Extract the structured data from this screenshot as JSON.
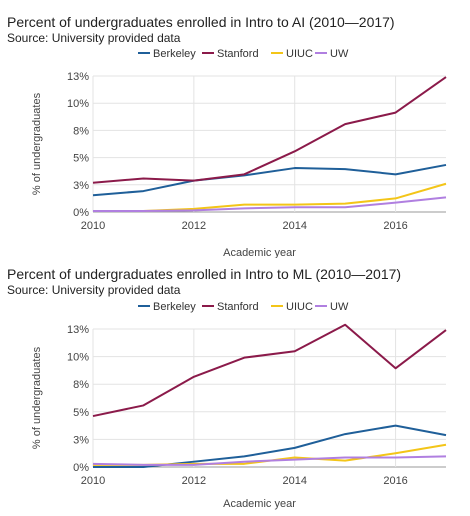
{
  "chart_data": [
    {
      "type": "line",
      "title": "Percent of undergraduates enrolled in Intro to AI (2010—2017)",
      "subtitle": "Source: University provided data",
      "xlabel": "Academic year",
      "ylabel": "% of undergraduates",
      "x": [
        2010,
        2011,
        2012,
        2013,
        2014,
        2015,
        2016,
        2017
      ],
      "x_ticks": [
        "2010",
        "2012",
        "2014",
        "2016"
      ],
      "y_ticks": [
        "0%",
        "3%",
        "5%",
        "8%",
        "10%",
        "13%"
      ],
      "ylim": [
        0,
        13
      ],
      "legend_position": "top-center",
      "grid": true,
      "series": [
        {
          "name": "Berkeley",
          "color": "#1f5f99",
          "values": [
            1.6,
            2.0,
            3.0,
            3.5,
            4.2,
            4.1,
            3.6,
            4.5
          ]
        },
        {
          "name": "Stanford",
          "color": "#8b1a4a",
          "values": [
            2.8,
            3.2,
            3.0,
            3.6,
            5.8,
            8.4,
            9.5,
            12.9
          ]
        },
        {
          "name": "UIUC",
          "color": "#f3c518",
          "values": [
            0.1,
            0.1,
            0.3,
            0.7,
            0.7,
            0.8,
            1.3,
            2.7
          ]
        },
        {
          "name": "UW",
          "color": "#b07fe0",
          "values": [
            0.1,
            0.1,
            0.15,
            0.35,
            0.45,
            0.45,
            0.9,
            1.4
          ]
        }
      ]
    },
    {
      "type": "line",
      "title": "Percent of undergraduates enrolled in Intro to ML (2010—2017)",
      "subtitle": "Source: University provided data",
      "xlabel": "Academic year",
      "ylabel": "% of undergraduates",
      "x": [
        2010,
        2011,
        2012,
        2013,
        2014,
        2015,
        2016,
        2017
      ],
      "x_ticks": [
        "2010",
        "2012",
        "2014",
        "2016"
      ],
      "y_ticks": [
        "0%",
        "3%",
        "5%",
        "8%",
        "10%",
        "13%"
      ],
      "ylim": [
        0,
        13
      ],
      "legend_position": "top-center",
      "grid": true,
      "series": [
        {
          "name": "Berkeley",
          "color": "#1f5f99",
          "values": [
            0,
            0,
            0.5,
            1.0,
            1.8,
            3.1,
            3.9,
            3.0
          ]
        },
        {
          "name": "Stanford",
          "color": "#8b1a4a",
          "values": [
            4.8,
            5.8,
            8.5,
            10.3,
            10.9,
            13.4,
            9.3,
            12.9
          ]
        },
        {
          "name": "UIUC",
          "color": "#f3c518",
          "values": [
            0.2,
            0.2,
            0.3,
            0.3,
            0.9,
            0.6,
            1.3,
            2.1
          ]
        },
        {
          "name": "UW",
          "color": "#b07fe0",
          "values": [
            0.3,
            0.2,
            0.2,
            0.5,
            0.7,
            0.9,
            0.9,
            1.0
          ]
        }
      ]
    }
  ]
}
